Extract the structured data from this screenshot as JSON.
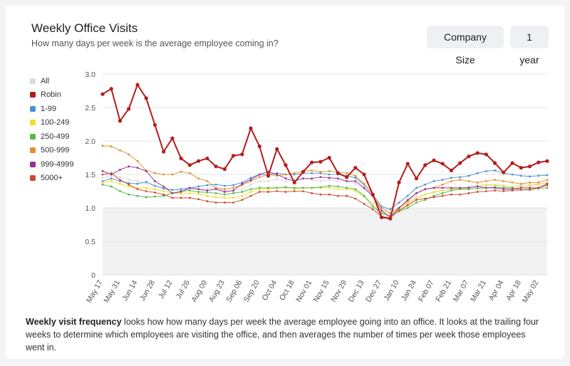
{
  "header": {
    "title": "Weekly Office Visits",
    "subtitle": "How many days per week is the average employee coming in?"
  },
  "controls": {
    "size_button": "Company Size",
    "range_button": "1 year"
  },
  "footnote": {
    "bold": "Weekly visit frequency",
    "text": " looks how how many days per week the average employee going into an office. It looks at the trailing four weeks to determine which employees are visiting the office, and then averages the number of times per week those employees went in."
  },
  "chart_data": {
    "type": "line",
    "x": [
      "May 17",
      "May 24",
      "May 31",
      "Jun 07",
      "Jun 14",
      "Jun 21",
      "Jun 28",
      "Jul 05",
      "Jul 12",
      "Jul 19",
      "Jul 26",
      "Aug 02",
      "Aug 09",
      "Aug 16",
      "Aug 23",
      "Aug 30",
      "Sep 06",
      "Sep 13",
      "Sep 20",
      "Sep 27",
      "Oct 04",
      "Oct 11",
      "Oct 18",
      "Oct 25",
      "Nov 01",
      "Nov 08",
      "Nov 15",
      "Nov 22",
      "Nov 29",
      "Dec 06",
      "Dec 13",
      "Dec 20",
      "Dec 27",
      "Jan 03",
      "Jan 10",
      "Jan 17",
      "Jan 24",
      "Jan 31",
      "Feb 07",
      "Feb 14",
      "Feb 21",
      "Feb 28",
      "Mar 07",
      "Mar 14",
      "Mar 21",
      "Mar 28",
      "Apr 04",
      "Apr 11",
      "Apr 18",
      "Apr 25",
      "May 02",
      "May 09"
    ],
    "x_tick_labels": [
      "May 17",
      "May 31",
      "Jun 14",
      "Jun 28",
      "Jul 12",
      "Jul 26",
      "Aug 09",
      "Aug 23",
      "Sep 06",
      "Sep 20",
      "Oct 04",
      "Oct 18",
      "Nov 01",
      "Nov 15",
      "Nov 29",
      "Dec 13",
      "Dec 27",
      "Jan 10",
      "Jan 24",
      "Feb 07",
      "Feb 21",
      "Mar 07",
      "Mar 21",
      "Apr 04",
      "Apr 18",
      "May 02"
    ],
    "y_ticks": [
      "0",
      "0.5",
      "1.0",
      "1.5",
      "2.0",
      "2.5",
      "3.0"
    ],
    "ylim": [
      0,
      3
    ],
    "shaded_band": [
      0,
      1
    ],
    "grid": true,
    "legend_position": "left",
    "series": [
      {
        "name": "All",
        "color": "#d9d9d9",
        "values": [
          1.45,
          1.48,
          1.46,
          1.42,
          1.4,
          1.36,
          1.33,
          1.3,
          1.27,
          1.26,
          1.28,
          1.28,
          1.29,
          1.3,
          1.26,
          1.25,
          1.28,
          1.35,
          1.4,
          1.4,
          1.43,
          1.4,
          1.42,
          1.44,
          1.42,
          1.4,
          1.42,
          1.4,
          1.4,
          1.36,
          1.28,
          1.17,
          0.96,
          0.92,
          1.0,
          1.08,
          1.16,
          1.2,
          1.23,
          1.26,
          1.28,
          1.3,
          1.32,
          1.34,
          1.35,
          1.35,
          1.34,
          1.32,
          1.34,
          1.35,
          1.36,
          1.37
        ]
      },
      {
        "name": "Robin",
        "color": "#b61c1c",
        "values": [
          2.7,
          2.78,
          2.3,
          2.48,
          2.84,
          2.64,
          2.24,
          1.84,
          2.04,
          1.74,
          1.64,
          1.7,
          1.74,
          1.62,
          1.58,
          1.78,
          1.8,
          2.19,
          1.92,
          1.48,
          1.88,
          1.64,
          1.38,
          1.54,
          1.68,
          1.69,
          1.75,
          1.52,
          1.46,
          1.6,
          1.5,
          1.2,
          0.86,
          0.84,
          1.38,
          1.66,
          1.44,
          1.64,
          1.71,
          1.66,
          1.56,
          1.67,
          1.77,
          1.82,
          1.8,
          1.67,
          1.53,
          1.67,
          1.6,
          1.62,
          1.68,
          1.7
        ]
      },
      {
        "name": "1-99",
        "color": "#4a8fd4",
        "values": [
          1.4,
          1.44,
          1.4,
          1.37,
          1.36,
          1.39,
          1.33,
          1.29,
          1.27,
          1.28,
          1.3,
          1.32,
          1.34,
          1.35,
          1.33,
          1.34,
          1.38,
          1.45,
          1.5,
          1.5,
          1.52,
          1.5,
          1.5,
          1.52,
          1.52,
          1.52,
          1.5,
          1.5,
          1.48,
          1.45,
          1.35,
          1.2,
          1.02,
          0.98,
          1.08,
          1.18,
          1.3,
          1.35,
          1.4,
          1.42,
          1.45,
          1.46,
          1.48,
          1.52,
          1.55,
          1.56,
          1.52,
          1.5,
          1.48,
          1.47,
          1.48,
          1.49
        ]
      },
      {
        "name": "100-249",
        "color": "#f0dc2a",
        "values": [
          1.38,
          1.4,
          1.36,
          1.32,
          1.3,
          1.3,
          1.28,
          1.25,
          1.22,
          1.21,
          1.22,
          1.21,
          1.18,
          1.16,
          1.15,
          1.15,
          1.18,
          1.24,
          1.28,
          1.28,
          1.3,
          1.3,
          1.28,
          1.3,
          1.3,
          1.3,
          1.3,
          1.28,
          1.28,
          1.25,
          1.17,
          1.06,
          0.92,
          0.88,
          0.98,
          1.06,
          1.14,
          1.2,
          1.24,
          1.26,
          1.28,
          1.28,
          1.3,
          1.32,
          1.34,
          1.34,
          1.32,
          1.3,
          1.32,
          1.33,
          1.35,
          1.38
        ]
      },
      {
        "name": "250-499",
        "color": "#58b84a",
        "values": [
          1.35,
          1.32,
          1.25,
          1.2,
          1.18,
          1.16,
          1.17,
          1.18,
          1.22,
          1.25,
          1.26,
          1.24,
          1.23,
          1.22,
          1.2,
          1.22,
          1.24,
          1.28,
          1.3,
          1.3,
          1.3,
          1.31,
          1.3,
          1.3,
          1.3,
          1.31,
          1.33,
          1.32,
          1.3,
          1.28,
          1.18,
          1.02,
          0.92,
          0.88,
          0.95,
          1.0,
          1.08,
          1.12,
          1.18,
          1.22,
          1.26,
          1.28,
          1.28,
          1.29,
          1.3,
          1.31,
          1.3,
          1.3,
          1.27,
          1.28,
          1.29,
          1.3
        ]
      },
      {
        "name": "500-999",
        "color": "#e09024",
        "values": [
          1.93,
          1.92,
          1.86,
          1.8,
          1.7,
          1.56,
          1.52,
          1.5,
          1.5,
          1.54,
          1.52,
          1.44,
          1.4,
          1.3,
          1.28,
          1.3,
          1.34,
          1.4,
          1.46,
          1.5,
          1.48,
          1.5,
          1.52,
          1.55,
          1.56,
          1.54,
          1.55,
          1.53,
          1.52,
          1.48,
          1.36,
          1.2,
          1.0,
          0.92,
          1.0,
          1.1,
          1.22,
          1.28,
          1.3,
          1.35,
          1.4,
          1.42,
          1.4,
          1.38,
          1.4,
          1.42,
          1.4,
          1.38,
          1.36,
          1.38,
          1.38,
          1.42
        ]
      },
      {
        "name": "999-4999",
        "color": "#962e94",
        "values": [
          1.55,
          1.5,
          1.57,
          1.62,
          1.6,
          1.55,
          1.4,
          1.32,
          1.22,
          1.24,
          1.3,
          1.28,
          1.26,
          1.28,
          1.24,
          1.26,
          1.36,
          1.42,
          1.5,
          1.54,
          1.5,
          1.44,
          1.4,
          1.44,
          1.44,
          1.46,
          1.45,
          1.44,
          1.4,
          1.4,
          1.3,
          1.18,
          0.96,
          0.86,
          1.0,
          1.12,
          1.22,
          1.28,
          1.3,
          1.3,
          1.3,
          1.3,
          1.3,
          1.32,
          1.3,
          1.3,
          1.28,
          1.28,
          1.3,
          1.3,
          1.3,
          1.36
        ]
      },
      {
        "name": "5000+",
        "color": "#c94a2c",
        "values": [
          1.5,
          1.52,
          1.42,
          1.35,
          1.28,
          1.25,
          1.23,
          1.2,
          1.15,
          1.15,
          1.15,
          1.13,
          1.1,
          1.08,
          1.08,
          1.08,
          1.12,
          1.18,
          1.24,
          1.24,
          1.25,
          1.24,
          1.25,
          1.25,
          1.22,
          1.2,
          1.2,
          1.18,
          1.18,
          1.14,
          1.06,
          0.98,
          0.87,
          0.85,
          0.96,
          1.04,
          1.12,
          1.14,
          1.16,
          1.18,
          1.2,
          1.2,
          1.22,
          1.24,
          1.25,
          1.26,
          1.25,
          1.26,
          1.27,
          1.27,
          1.3,
          1.34
        ]
      }
    ]
  }
}
